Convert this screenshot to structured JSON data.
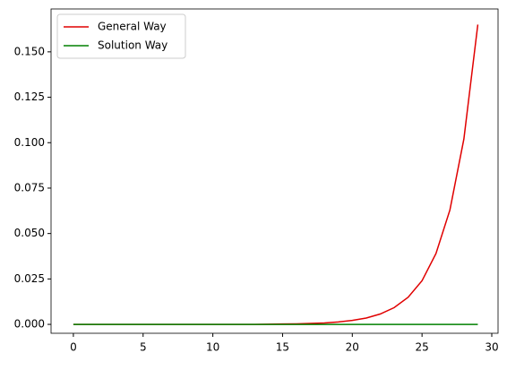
{
  "chart_data": {
    "type": "line",
    "x": [
      0,
      1,
      2,
      3,
      4,
      5,
      6,
      7,
      8,
      9,
      10,
      11,
      12,
      13,
      14,
      15,
      16,
      17,
      18,
      19,
      20,
      21,
      22,
      23,
      24,
      25,
      26,
      27,
      28,
      29
    ],
    "series": [
      {
        "name": "General Way",
        "color": "#e00000",
        "values": [
          0,
          0,
          0,
          0,
          0,
          0,
          0,
          0,
          0,
          0,
          0,
          0,
          0,
          0,
          0.0001,
          0.0002,
          0.0003,
          0.0005,
          0.0008,
          0.0013,
          0.0022,
          0.0035,
          0.0057,
          0.0092,
          0.0149,
          0.024,
          0.039,
          0.063,
          0.102,
          0.165
        ]
      },
      {
        "name": "Solution Way",
        "color": "#008000",
        "values": [
          0,
          0,
          0,
          0,
          0,
          0,
          0,
          0,
          0,
          0,
          0,
          0,
          0,
          0,
          0,
          0,
          0,
          0,
          0,
          0,
          0,
          0,
          0,
          0,
          0,
          0,
          0,
          0,
          0,
          0
        ]
      }
    ],
    "xlim": [
      -1.6,
      30.45
    ],
    "ylim": [
      -0.0049,
      0.1736
    ],
    "xticks": [
      0,
      5,
      10,
      15,
      20,
      25,
      30
    ],
    "yticks": [
      {
        "value": 0,
        "label": "0.000"
      },
      {
        "value": 0.025,
        "label": "0.025"
      },
      {
        "value": 0.05,
        "label": "0.050"
      },
      {
        "value": 0.075,
        "label": "0.075"
      },
      {
        "value": 0.1,
        "label": "0.100"
      },
      {
        "value": 0.125,
        "label": "0.125"
      },
      {
        "value": 0.15,
        "label": "0.150"
      }
    ],
    "legend": "upper left",
    "grid": false
  }
}
